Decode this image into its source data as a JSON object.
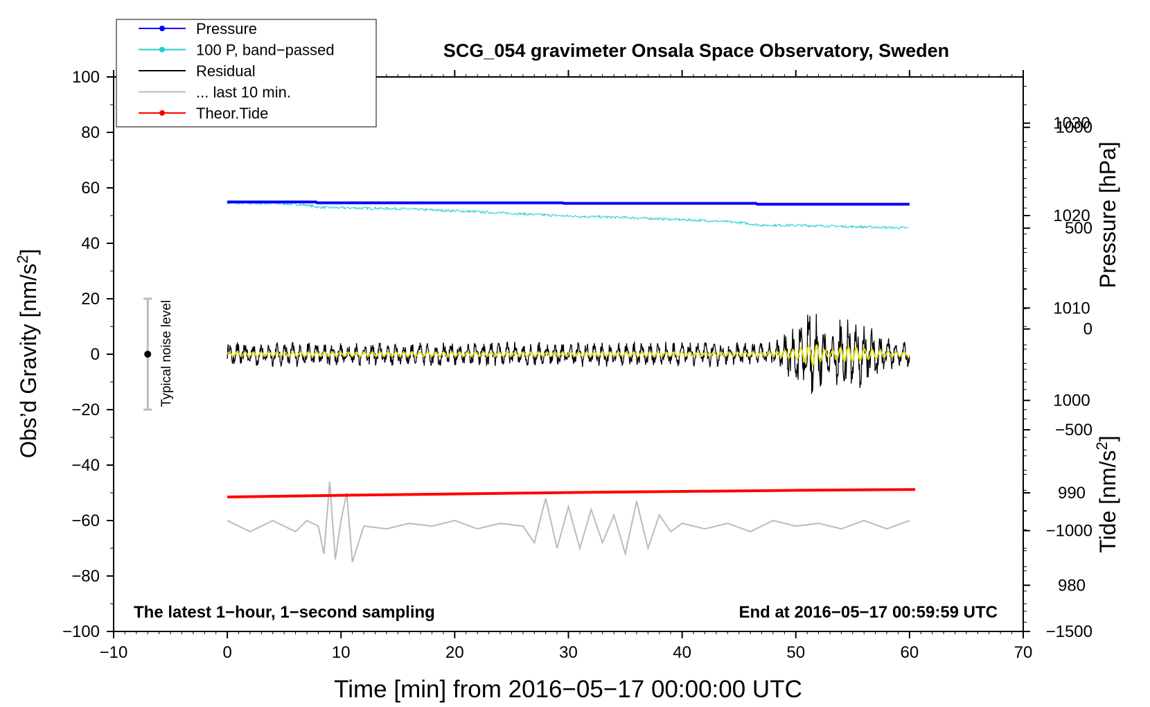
{
  "chart_data": {
    "type": "line",
    "title": "SCG_054 gravimeter Onsala Space Observatory, Sweden",
    "xlabel": "Time [min] from 2016−05−17 00:00:00 UTC",
    "ylabel_main": "Obs’d Gravity [nm/s",
    "ylabel_right_pressure": "Pressure [hPa]",
    "ylabel_right_tide": "Tide [nm/s",
    "ylabel_superscript": "2",
    "ylabel_suffix": "]",
    "annotation_left": "The latest 1−hour, 1−second sampling",
    "annotation_right": "End at 2016−05−17 00:59:59 UTC",
    "noise_label": "Typical noise level",
    "xlim": [
      -10,
      70
    ],
    "ylim": [
      -100,
      100
    ],
    "x_ticks": [
      -10,
      0,
      10,
      20,
      30,
      40,
      50,
      60,
      70
    ],
    "x_tick_labels": [
      "−10",
      "0",
      "10",
      "20",
      "30",
      "40",
      "50",
      "60",
      "70"
    ],
    "y_ticks": [
      100,
      80,
      60,
      40,
      20,
      0,
      -20,
      -40,
      -60,
      -80,
      -100
    ],
    "y_tick_labels": [
      "100",
      "80",
      "60",
      "40",
      "20",
      "0",
      "−20",
      "−40",
      "−60",
      "−80",
      "−100"
    ],
    "pressure_axis": {
      "ticks": [
        1030,
        1020,
        1010,
        1000,
        990,
        980
      ],
      "tick_labels": [
        "1030",
        "1020",
        "1010",
        "1000",
        "990",
        "980"
      ],
      "range": [
        975,
        1035
      ]
    },
    "tide_axis": {
      "ticks": [
        1000,
        500,
        0,
        -500,
        -1000,
        -1500
      ],
      "tick_labels": [
        "1000",
        "500",
        "0",
        "−500",
        "−1000",
        "−1500"
      ],
      "range": [
        -1500,
        1250
      ]
    },
    "noise_bar": {
      "x": -7,
      "y_low": -20,
      "y_high": 20,
      "center": 0
    },
    "legend": {
      "placement": "top-left",
      "entries": [
        {
          "label": "Pressure",
          "color": "#0000ff",
          "marker": true
        },
        {
          "label": "100 P, band−passed",
          "color": "#22cccc",
          "marker": true
        },
        {
          "label": "Residual",
          "color": "#000000",
          "marker": false
        },
        {
          "label": "... last 10 min.",
          "color": "#bbbbbb",
          "marker": false
        },
        {
          "label": "Theor.Tide",
          "color": "#ff0000",
          "marker": true
        }
      ]
    },
    "series": [
      {
        "name": "Pressure",
        "color": "#0000ff",
        "axis": "left",
        "x": [
          0,
          7.8,
          7.9,
          29.5,
          29.6,
          46.5,
          46.6,
          60
        ],
        "y": [
          54.9,
          54.9,
          54.6,
          54.6,
          54.4,
          54.4,
          54.1,
          54.1
        ]
      },
      {
        "name": "100 P, band−passed",
        "color": "#22cccc",
        "axis": "left",
        "x": [
          0,
          5,
          7,
          8,
          10,
          15,
          20,
          25,
          30,
          35,
          40,
          42,
          45,
          47,
          50,
          55,
          60
        ],
        "y": [
          54.5,
          54.3,
          53.8,
          53,
          52.8,
          52.5,
          51.7,
          50.8,
          49.8,
          49.3,
          48.5,
          48.2,
          47.5,
          46.5,
          46.5,
          46,
          45.5
        ]
      },
      {
        "name": "Residual",
        "color": "#000000",
        "axis": "left",
        "x": [
          0,
          48,
          49,
          50,
          51,
          51.5,
          52,
          52.5,
          53,
          54,
          55,
          56,
          57,
          58,
          59,
          60
        ],
        "y": [
          0,
          0,
          0,
          0,
          0,
          0,
          0,
          0,
          0,
          0,
          0,
          0,
          0,
          0,
          0,
          0
        ],
        "envelope": [
          3,
          3,
          5,
          7,
          12,
          16,
          12,
          6,
          4,
          10,
          10,
          8,
          6,
          4,
          3,
          3
        ]
      },
      {
        "name": "... last 10 min.",
        "color": "#bbbbbb",
        "axis": "left",
        "x": [
          0,
          2,
          4,
          6,
          7,
          8,
          8.5,
          9,
          9.5,
          10,
          10.5,
          11,
          12,
          14,
          16,
          18,
          20,
          22,
          24,
          26,
          27,
          28,
          29,
          30,
          31,
          32,
          33,
          34,
          35,
          36,
          37,
          38,
          39,
          40,
          42,
          44,
          46,
          48,
          50,
          52,
          54,
          56,
          58,
          60
        ],
        "y": [
          -60,
          -64,
          -60,
          -64,
          -60,
          -62,
          -72,
          -46,
          -74,
          -60,
          -50,
          -75,
          -62,
          -63,
          -61,
          -62,
          -60,
          -63,
          -61,
          -62,
          -68,
          -52,
          -70,
          -55,
          -70,
          -56,
          -68,
          -58,
          -72,
          -53,
          -70,
          -58,
          -64,
          -61,
          -63,
          -61,
          -64,
          -60,
          -62,
          -61,
          -63,
          -60,
          -63,
          -60
        ]
      },
      {
        "name": "Theor.Tide",
        "color": "#ff0000",
        "axis": "left",
        "x": [
          0,
          10,
          20,
          30,
          40,
          50,
          60.5
        ],
        "y": [
          -51.5,
          -50.9,
          -50.4,
          -49.9,
          -49.5,
          -49.1,
          -48.8
        ]
      }
    ]
  }
}
